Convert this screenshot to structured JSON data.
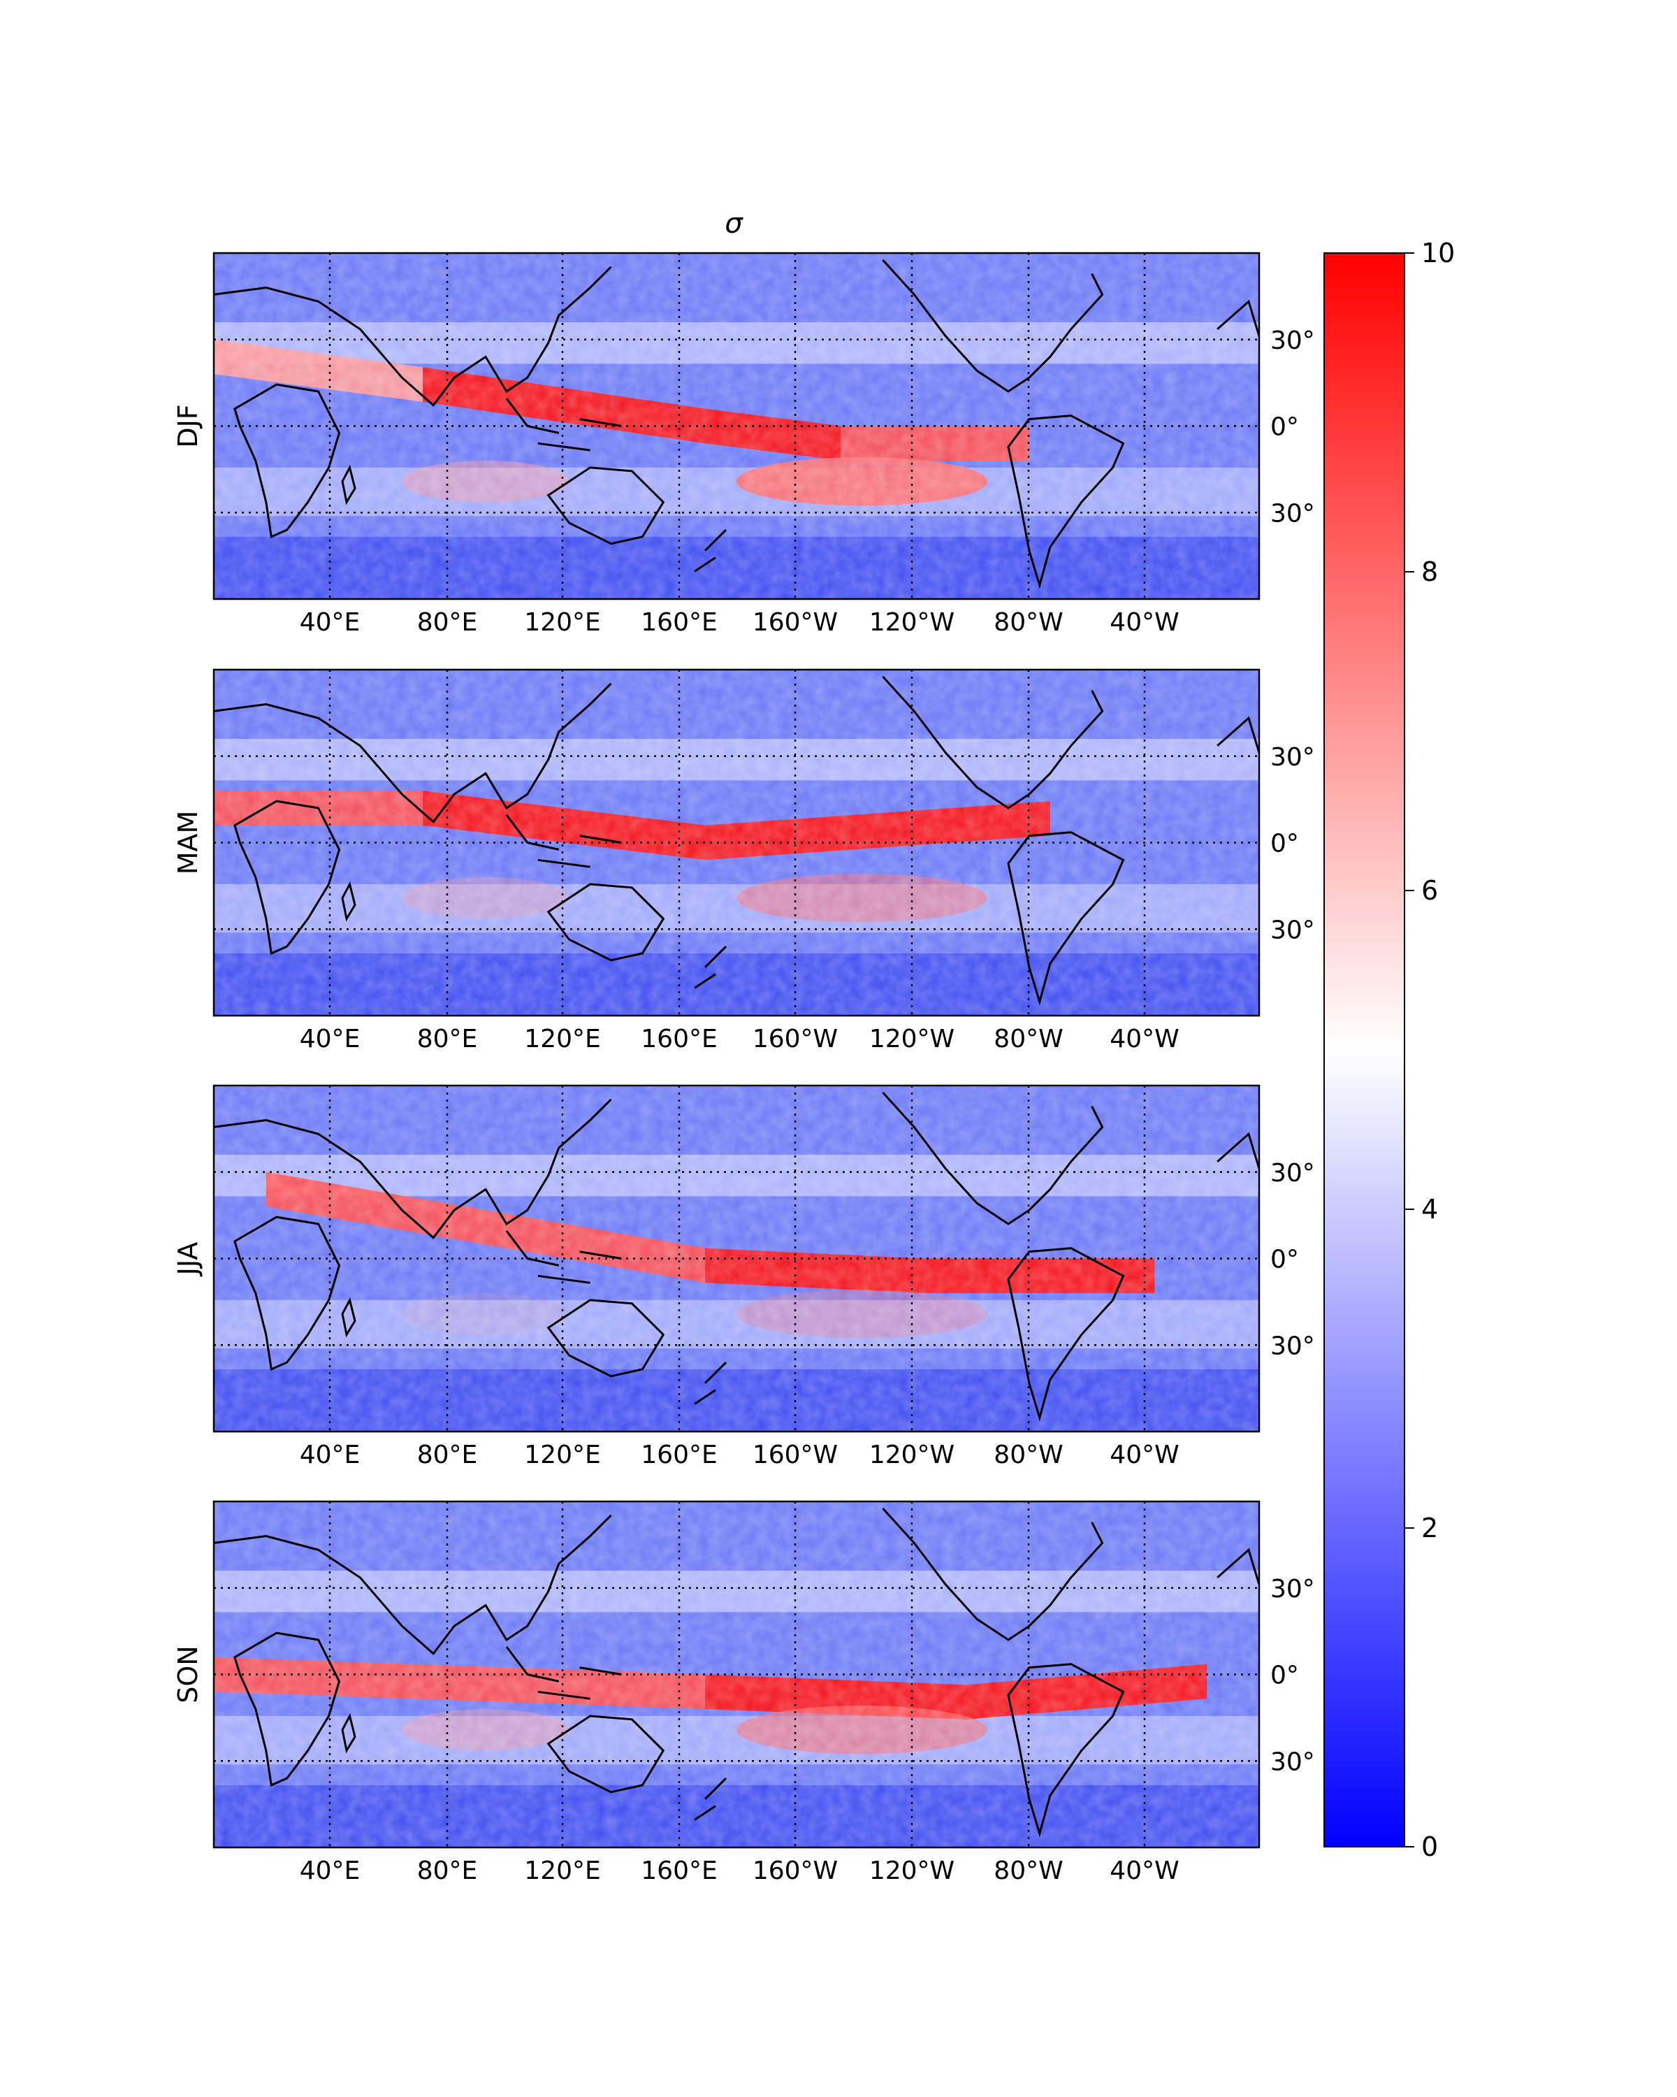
{
  "figure": {
    "title": "σ",
    "panels": [
      {
        "label": "DJF"
      },
      {
        "label": "MAM"
      },
      {
        "label": "JJA"
      },
      {
        "label": "SON"
      }
    ],
    "lon_ticks": [
      "40°E",
      "80°E",
      "120°E",
      "160°E",
      "160°W",
      "120°W",
      "80°W",
      "40°W"
    ],
    "lat_ticks": [
      "30°",
      "0°",
      "30°"
    ],
    "colorbar": {
      "ticks": [
        "0",
        "2",
        "4",
        "6",
        "8",
        "10"
      ],
      "min": 0,
      "max": 10,
      "colors": {
        "low": "#0000ff",
        "mid": "#ffffff",
        "high": "#ff0000"
      }
    },
    "colors": {
      "land_outline": "#000000",
      "gridline": "#000000"
    }
  }
}
